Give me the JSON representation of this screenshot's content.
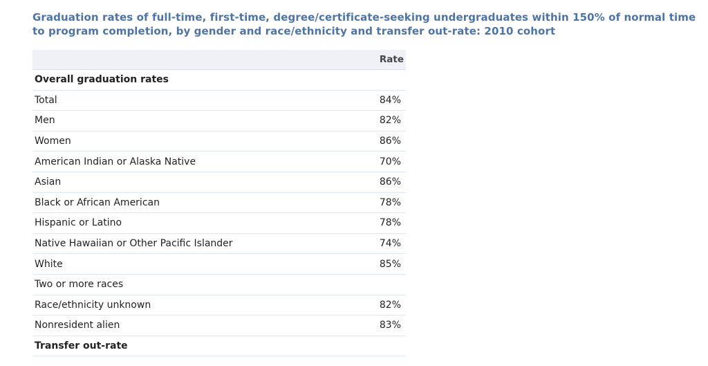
{
  "title": "Graduation rates of full-time, first-time, degree/certificate-seeking undergraduates within 150% of normal time to program completion, by gender and race/ethnicity and transfer out-rate: 2010 cohort",
  "table": {
    "column_header": "Rate",
    "rows": [
      {
        "kind": "section",
        "label": "Overall graduation rates",
        "value": ""
      },
      {
        "kind": "row",
        "label": "Total",
        "value": "84%"
      },
      {
        "kind": "row",
        "label": "Men",
        "value": "82%"
      },
      {
        "kind": "row",
        "label": "Women",
        "value": "86%"
      },
      {
        "kind": "row",
        "label": "American Indian or Alaska Native",
        "value": "70%"
      },
      {
        "kind": "row",
        "label": "Asian",
        "value": "86%"
      },
      {
        "kind": "row",
        "label": "Black or African American",
        "value": "78%"
      },
      {
        "kind": "row",
        "label": "Hispanic or Latino",
        "value": "78%"
      },
      {
        "kind": "row",
        "label": "Native Hawaiian or Other Pacific Islander",
        "value": "74%"
      },
      {
        "kind": "row",
        "label": "White",
        "value": "85%"
      },
      {
        "kind": "row",
        "label": "Two or more races",
        "value": ""
      },
      {
        "kind": "row",
        "label": "Race/ethnicity unknown",
        "value": "82%"
      },
      {
        "kind": "row",
        "label": "Nonresident alien",
        "value": "83%"
      },
      {
        "kind": "section",
        "label": "Transfer out-rate",
        "value": ""
      }
    ]
  }
}
